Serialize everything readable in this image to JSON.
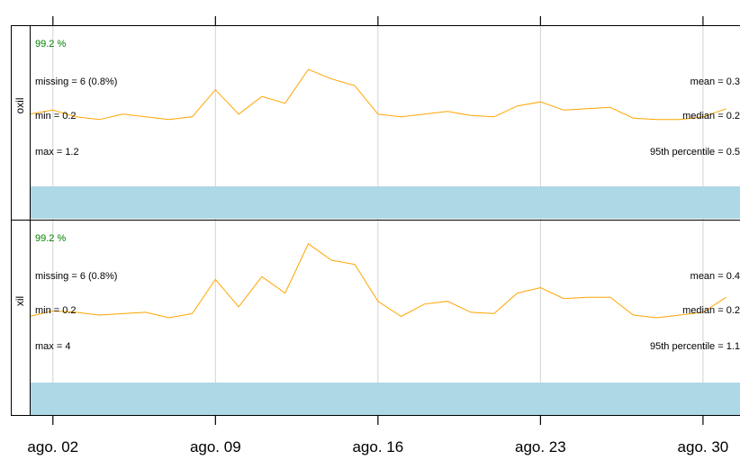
{
  "colors": {
    "series_line": "#ffa500",
    "capture_text": "#008000",
    "data_bar": "#add8e6",
    "grid": "#d3d3d3",
    "frame": "#000000"
  },
  "chart_data": {
    "type": "line",
    "xlabel": "",
    "ylabel": "",
    "x_ticks": [
      "ago. 02",
      "ago. 09",
      "ago. 16",
      "ago. 23",
      "ago. 30"
    ],
    "x": [
      "ago. 01",
      "ago. 02",
      "ago. 03",
      "ago. 04",
      "ago. 05",
      "ago. 06",
      "ago. 07",
      "ago. 08",
      "ago. 09",
      "ago. 10",
      "ago. 11",
      "ago. 12",
      "ago. 13",
      "ago. 14",
      "ago. 15",
      "ago. 16",
      "ago. 17",
      "ago. 18",
      "ago. 19",
      "ago. 20",
      "ago. 21",
      "ago. 22",
      "ago. 23",
      "ago. 24",
      "ago. 25",
      "ago. 26",
      "ago. 27",
      "ago. 28",
      "ago. 29",
      "ago. 30",
      "ago. 31"
    ],
    "grid": true,
    "panels": [
      {
        "name": "oxil",
        "data_capture": "99.2 %",
        "stats": {
          "missing": "missing = 6 (0.8%)",
          "min": "min = 0.2",
          "max": "max = 1.2",
          "mean": "mean = 0.3",
          "median": "median = 0.2",
          "p95": "95th percentile = 0.5"
        },
        "ylim": [
          0.1,
          1.25
        ],
        "values": [
          0.62,
          0.65,
          0.6,
          0.58,
          0.62,
          0.6,
          0.58,
          0.6,
          0.8,
          0.62,
          0.75,
          0.7,
          0.95,
          0.88,
          0.83,
          0.62,
          0.6,
          0.62,
          0.64,
          0.61,
          0.6,
          0.68,
          0.71,
          0.65,
          0.66,
          0.67,
          0.59,
          0.58,
          0.58,
          0.6,
          0.66
        ]
      },
      {
        "name": "xil",
        "data_capture": "99.2 %",
        "stats": {
          "missing": "missing = 6 (0.8%)",
          "min": "min = 0.2",
          "max": "max = 4",
          "mean": "mean = 0.4",
          "median": "median = 0.2",
          "p95": "95th percentile = 1.1"
        },
        "ylim": [
          0.1,
          1.25
        ],
        "values": [
          0.57,
          0.61,
          0.6,
          0.58,
          0.59,
          0.6,
          0.56,
          0.59,
          0.84,
          0.64,
          0.86,
          0.74,
          1.1,
          0.98,
          0.95,
          0.68,
          0.57,
          0.66,
          0.68,
          0.6,
          0.59,
          0.74,
          0.78,
          0.7,
          0.71,
          0.71,
          0.58,
          0.56,
          0.58,
          0.6,
          0.71
        ]
      }
    ]
  }
}
